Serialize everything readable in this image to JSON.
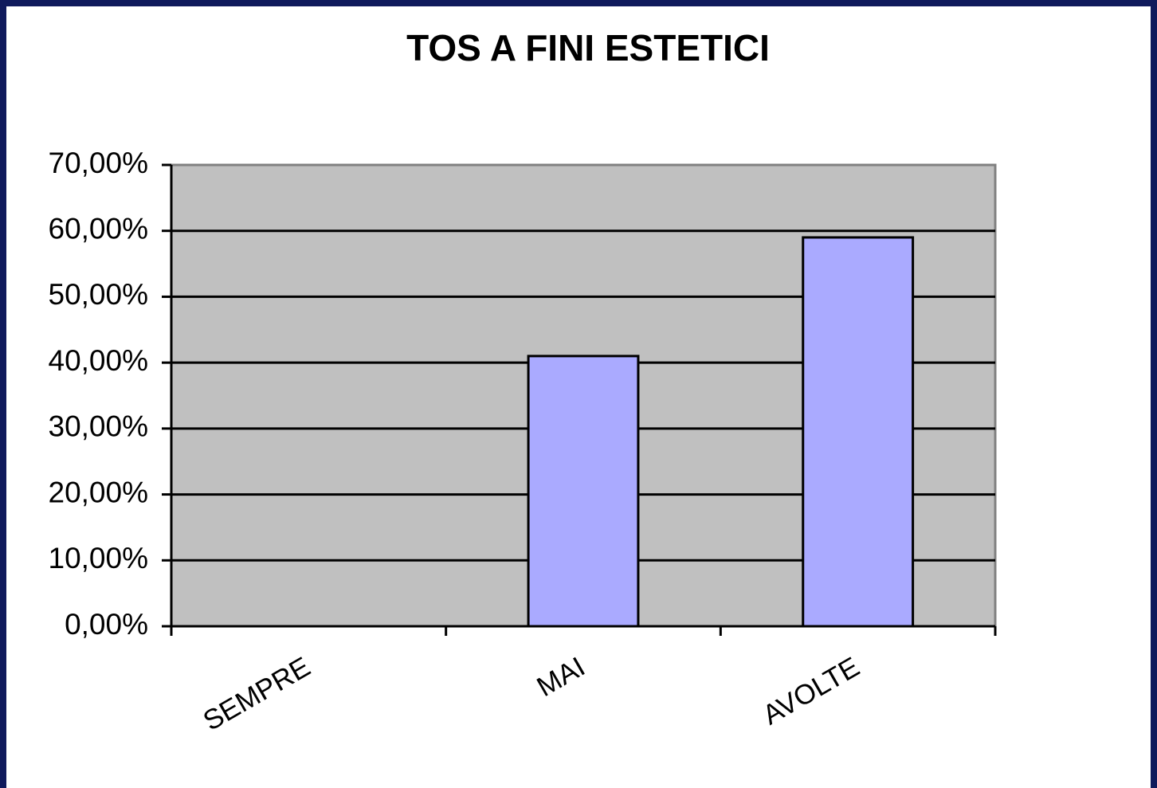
{
  "chart_data": {
    "type": "bar",
    "title": "TOS A FINI ESTETICI",
    "categories": [
      "SEMPRE",
      "MAI",
      "AVOLTE"
    ],
    "values": [
      0,
      41,
      59
    ],
    "color": "#aaaaff",
    "ylim": [
      0,
      70
    ],
    "yticks": [
      {
        "value": 0,
        "label": "0,00%"
      },
      {
        "value": 10,
        "label": "10,00%"
      },
      {
        "value": 20,
        "label": "20,00%"
      },
      {
        "value": 30,
        "label": "30,00%"
      },
      {
        "value": 40,
        "label": "40,00%"
      },
      {
        "value": 50,
        "label": "50,00%"
      },
      {
        "value": 60,
        "label": "60,00%"
      },
      {
        "value": 70,
        "label": "70,00%"
      }
    ],
    "grid": true
  }
}
